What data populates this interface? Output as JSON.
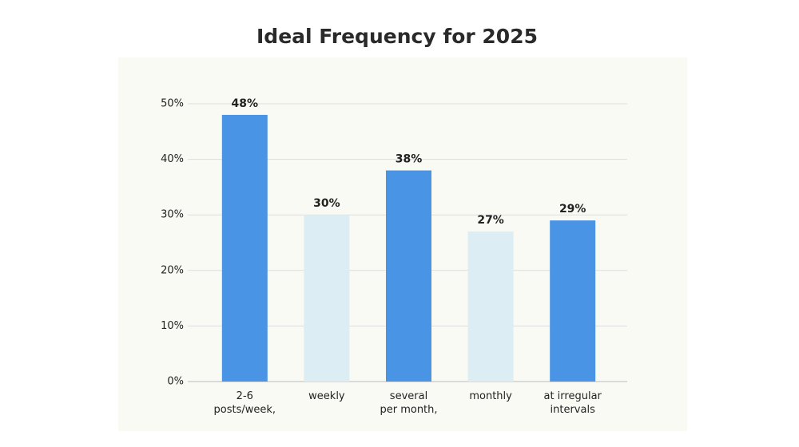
{
  "chart_data": {
    "type": "bar",
    "title": "Ideal Frequency for 2025",
    "categories": [
      "2-6\nposts/week,",
      "weekly",
      "several\nper month,",
      "monthly",
      "at irregular\nintervals"
    ],
    "values": [
      48,
      30,
      38,
      27,
      29
    ],
    "value_labels": [
      "48%",
      "30%",
      "38%",
      "27%",
      "29%"
    ],
    "colors": [
      "#4a94e6",
      "#dcedf4",
      "#4a94e6",
      "#dcedf4",
      "#4a94e6"
    ],
    "ylim": [
      0,
      50
    ],
    "yticks": [
      {
        "value": 0,
        "label": "0%"
      },
      {
        "value": 10,
        "label": "10%"
      },
      {
        "value": 20,
        "label": "20%"
      },
      {
        "value": 30,
        "label": "30%"
      },
      {
        "value": 40,
        "label": "40%"
      },
      {
        "value": 50,
        "label": "50%"
      }
    ],
    "grid": true
  }
}
